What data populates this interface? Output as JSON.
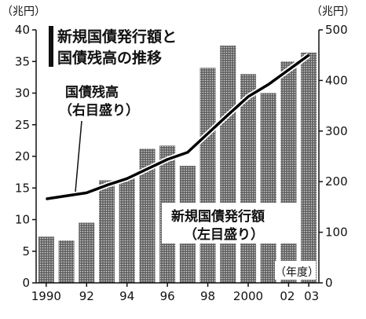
{
  "chart_data": {
    "type": "bar",
    "title_lines": [
      "新規国債発行額と",
      "国債残高の推移"
    ],
    "left_unit": "（兆円）",
    "right_unit": "（兆円）",
    "x_unit": "（年度）",
    "x_tick_labels": [
      "1990",
      "92",
      "94",
      "96",
      "98",
      "2000",
      "02",
      "03"
    ],
    "x_tick_years": [
      1990,
      1992,
      1994,
      1996,
      1998,
      2000,
      2002,
      2003
    ],
    "left_ylim": [
      0,
      40
    ],
    "left_ticks": [
      0,
      5,
      10,
      15,
      20,
      25,
      30,
      35,
      40
    ],
    "right_ylim": [
      0,
      500
    ],
    "right_ticks": [
      0,
      100,
      200,
      300,
      400,
      500
    ],
    "x": [
      1990,
      1991,
      1992,
      1993,
      1994,
      1995,
      1996,
      1997,
      1998,
      1999,
      2000,
      2001,
      2002,
      2003
    ],
    "series": [
      {
        "label_lines": [
          "新規国債発行額",
          "（左目盛り）"
        ],
        "axis": "left",
        "type": "bar",
        "values": [
          7.3,
          6.7,
          9.5,
          16.2,
          16.5,
          21.2,
          21.7,
          18.5,
          34.0,
          37.5,
          33.0,
          30.0,
          35.0,
          36.4
        ]
      },
      {
        "label_lines": [
          "国債残高",
          "（右目盛り）"
        ],
        "axis": "right",
        "type": "line",
        "values": [
          166,
          172,
          178,
          193,
          206,
          225,
          244,
          258,
          295,
          332,
          368,
          392,
          421,
          450
        ]
      }
    ]
  }
}
